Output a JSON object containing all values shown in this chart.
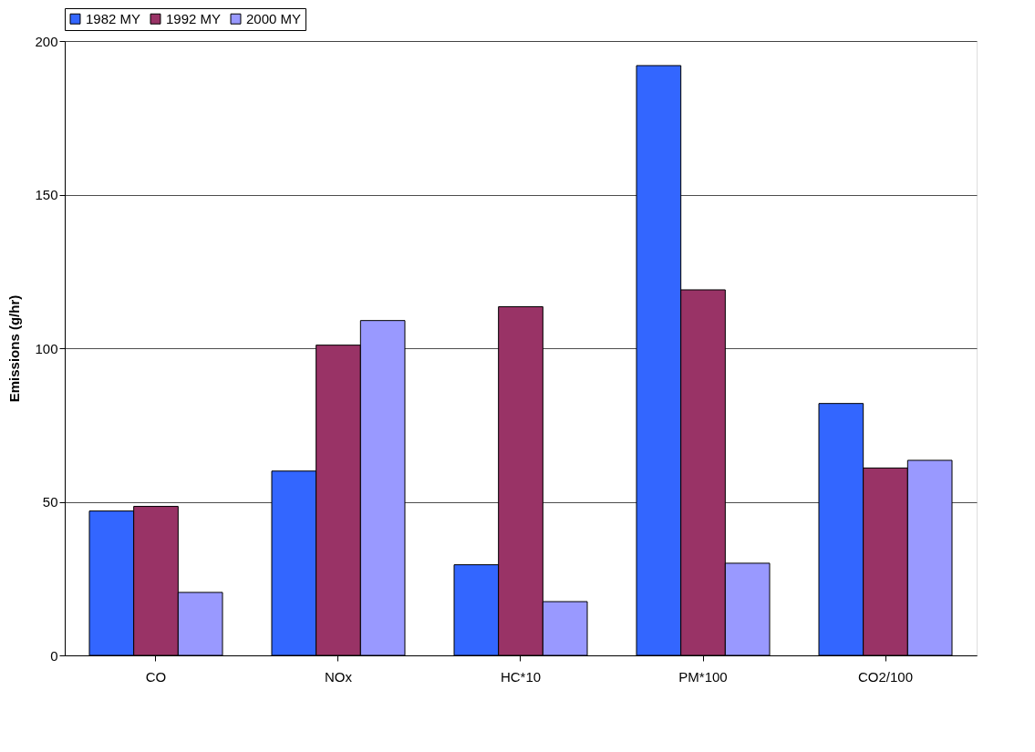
{
  "chart_data": {
    "type": "bar",
    "ylabel": "Emissions (g/hr)",
    "categories": [
      "CO",
      "NOx",
      "HC*10",
      "PM*100",
      "CO2/100"
    ],
    "series": [
      {
        "name": "1982 MY",
        "color": "#3366ff",
        "values": [
          47,
          60,
          29.5,
          192,
          82
        ]
      },
      {
        "name": "1992 MY",
        "color": "#993366",
        "values": [
          48.5,
          101,
          113.5,
          119,
          61
        ]
      },
      {
        "name": "2000 MY",
        "color": "#9999ff",
        "values": [
          20.5,
          109,
          17.5,
          30,
          63.5
        ]
      }
    ],
    "ylim": [
      0,
      200
    ],
    "yticks": [
      0,
      50,
      100,
      150,
      200
    ],
    "grid": "y",
    "legend": "top"
  }
}
